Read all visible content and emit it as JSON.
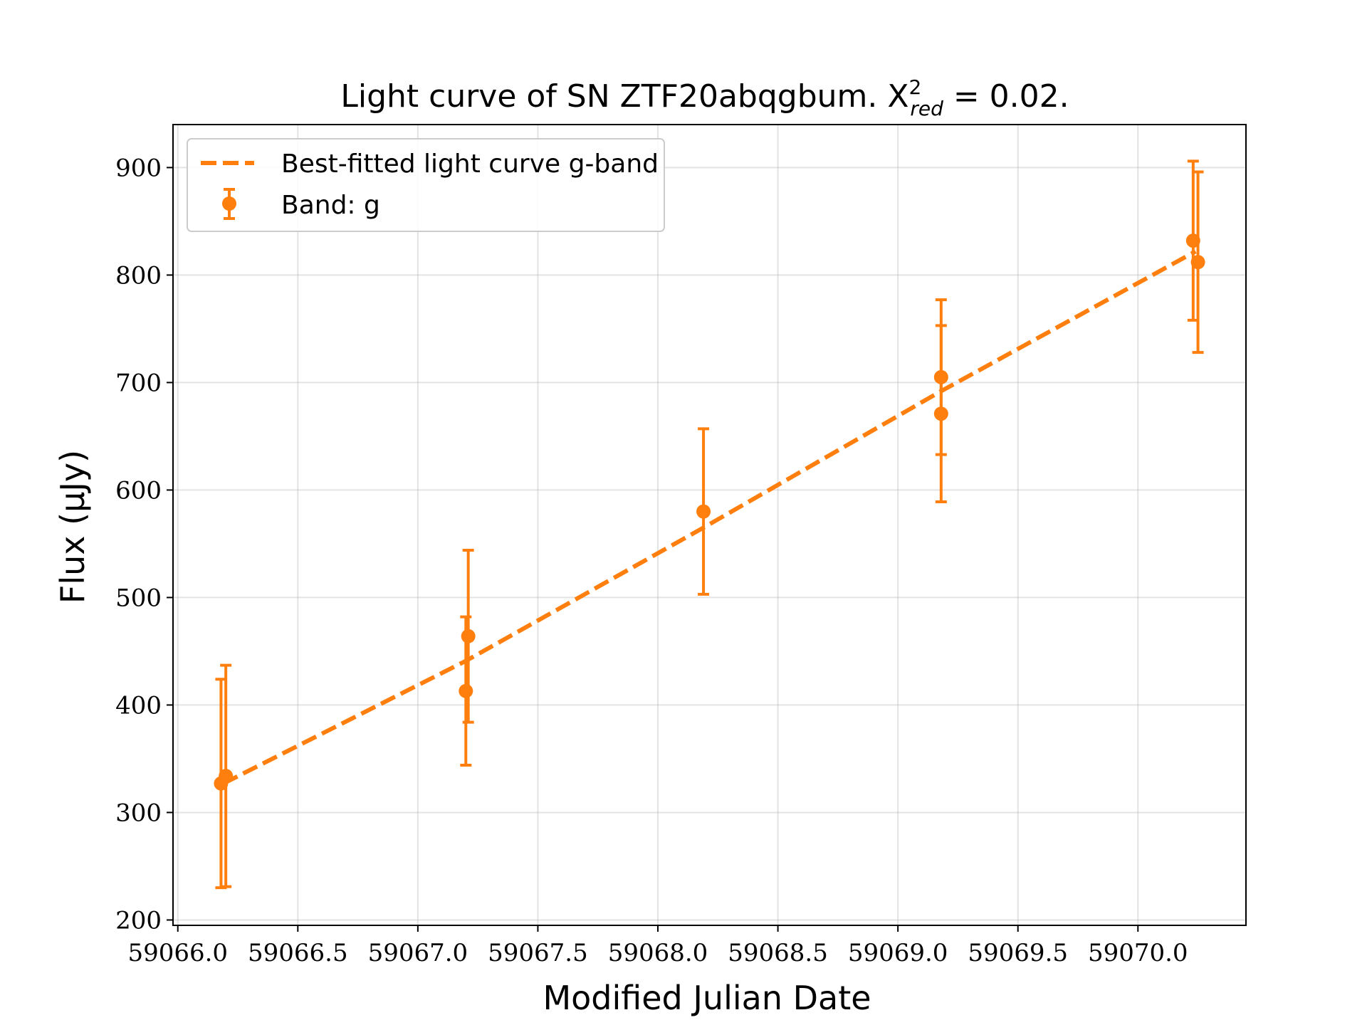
{
  "chart_data": {
    "type": "scatter",
    "title": "Light curve of SN ZTF20abqgbum. X",
    "title_sup": "2",
    "title_sub": "red",
    "title_suffix": " = 0.02.",
    "xlabel": "Modified Julian Date",
    "ylabel": "Flux (μJy)",
    "xlim": [
      59065.98,
      59070.45
    ],
    "ylim": [
      195,
      940
    ],
    "xticks": [
      59066.0,
      59066.5,
      59067.0,
      59067.5,
      59068.0,
      59068.5,
      59069.0,
      59069.5,
      59070.0
    ],
    "xtick_labels": [
      "59066.0",
      "59066.5",
      "59067.0",
      "59067.5",
      "59068.0",
      "59068.5",
      "59069.0",
      "59069.5",
      "59070.0"
    ],
    "yticks": [
      200,
      300,
      400,
      500,
      600,
      700,
      800,
      900
    ],
    "ytick_labels": [
      "200",
      "300",
      "400",
      "500",
      "600",
      "700",
      "800",
      "900"
    ],
    "grid": true,
    "legend_position": "upper-left",
    "color": "#ff7f0e",
    "series": [
      {
        "name": "Best-fitted light curve g-band",
        "kind": "line",
        "style": "dashed",
        "x": [
          59066.19,
          59067.2,
          59068.19,
          59069.18,
          59070.24
        ],
        "y": [
          327,
          441,
          565,
          692,
          822
        ]
      },
      {
        "name": "Band: g",
        "kind": "errorbar",
        "points": [
          {
            "x": 59066.18,
            "y": 327,
            "yerr": 97
          },
          {
            "x": 59066.2,
            "y": 334,
            "yerr": 103
          },
          {
            "x": 59067.2,
            "y": 413,
            "yerr": 69
          },
          {
            "x": 59067.21,
            "y": 464,
            "yerr": 80
          },
          {
            "x": 59068.19,
            "y": 580,
            "yerr": 77
          },
          {
            "x": 59069.18,
            "y": 705,
            "yerr": 72
          },
          {
            "x": 59069.18,
            "y": 671,
            "yerr": 82
          },
          {
            "x": 59070.23,
            "y": 832,
            "yerr": 74
          },
          {
            "x": 59070.25,
            "y": 812,
            "yerr": 84
          }
        ]
      }
    ]
  }
}
